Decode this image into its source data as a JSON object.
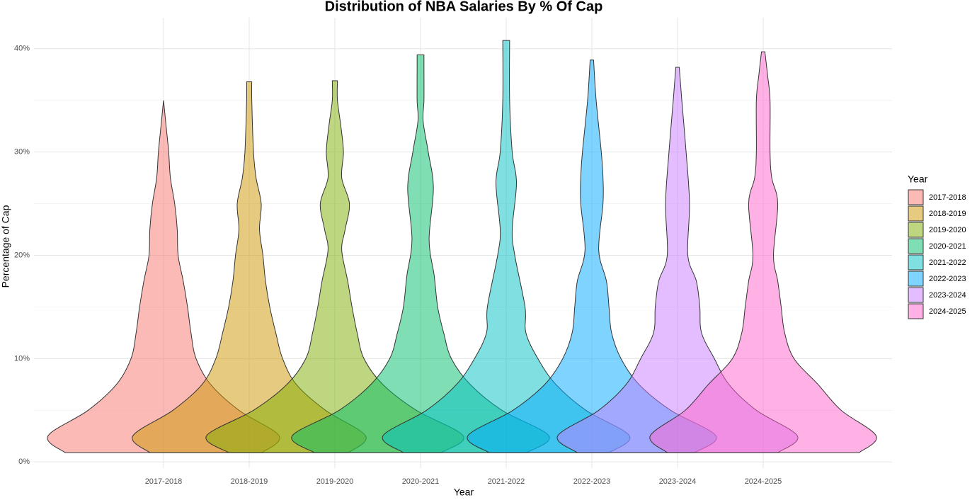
{
  "chart_data": {
    "type": "violin",
    "title": "Distribution of NBA Salaries By % Of Cap",
    "x_label": "Year",
    "y_label": "Percentage of Cap",
    "legend_title": "Year",
    "legend_position": "right",
    "grid": true,
    "categories": [
      "2017-2018",
      "2018-2019",
      "2019-2020",
      "2020-2021",
      "2021-2022",
      "2022-2023",
      "2023-2024",
      "2024-2025"
    ],
    "ylim": [
      -0.6,
      43
    ],
    "yticks": [
      {
        "value": 0,
        "label": "0%"
      },
      {
        "value": 10,
        "label": "10%"
      },
      {
        "value": 20,
        "label": "20%"
      },
      {
        "value": 30,
        "label": "30%"
      },
      {
        "value": 40,
        "label": "40%"
      }
    ],
    "yminor_ticks": [
      5,
      15,
      25,
      35
    ],
    "series": [
      {
        "name": "2017-2018",
        "color": "#F8766D",
        "y": [
          0.9,
          2.5,
          5,
          7.5,
          10,
          12.5,
          15,
          17.5,
          20,
          22.5,
          25,
          27.5,
          30,
          32.5,
          35
        ],
        "width": [
          1.15,
          1.35,
          0.88,
          0.55,
          0.38,
          0.32,
          0.28,
          0.23,
          0.17,
          0.16,
          0.13,
          0.08,
          0.06,
          0.03,
          0
        ]
      },
      {
        "name": "2018-2019",
        "color": "#CD9600",
        "y": [
          0.9,
          2.5,
          5,
          7.5,
          10,
          12.5,
          15,
          17.5,
          20,
          22.5,
          25,
          27.5,
          30,
          35,
          36.8
        ],
        "width": [
          1.16,
          1.36,
          0.89,
          0.55,
          0.39,
          0.31,
          0.24,
          0.19,
          0.16,
          0.12,
          0.14,
          0.08,
          0.05,
          0.03,
          0.03
        ]
      },
      {
        "name": "2019-2020",
        "color": "#7CAE00",
        "y": [
          0.9,
          2.5,
          5,
          7.5,
          10,
          12.5,
          15,
          17.5,
          20.5,
          22.5,
          25,
          27.5,
          30,
          32.5,
          35,
          36.9
        ],
        "width": [
          1.24,
          1.5,
          0.95,
          0.56,
          0.34,
          0.26,
          0.2,
          0.15,
          0.08,
          0.12,
          0.17,
          0.08,
          0.1,
          0.07,
          0.03,
          0.03
        ]
      },
      {
        "name": "2020-2021",
        "color": "#00BE67",
        "y": [
          0.9,
          2.5,
          5,
          7.5,
          10,
          12.5,
          15,
          18,
          21.5,
          26.5,
          30,
          33,
          35,
          38,
          39.4
        ],
        "width": [
          1.24,
          1.5,
          0.95,
          0.58,
          0.36,
          0.27,
          0.2,
          0.16,
          0.1,
          0.15,
          0.09,
          0.03,
          0.04,
          0.04,
          0.04
        ]
      },
      {
        "name": "2021-2022",
        "color": "#00BFC4",
        "y": [
          0.9,
          2.5,
          5,
          7.5,
          10,
          12.5,
          15,
          20,
          22.5,
          27,
          30,
          35,
          40.8
        ],
        "width": [
          1.2,
          1.44,
          0.93,
          0.58,
          0.37,
          0.23,
          0.22,
          0.1,
          0.07,
          0.12,
          0.07,
          0.04,
          0.04
        ]
      },
      {
        "name": "2022-2023",
        "color": "#00A9FF",
        "y": [
          0.9,
          2.5,
          5,
          7.5,
          10,
          12.5,
          15,
          17.5,
          20.5,
          25,
          27.5,
          30,
          35,
          38.9
        ],
        "width": [
          1.2,
          1.45,
          0.92,
          0.55,
          0.34,
          0.23,
          0.2,
          0.17,
          0.08,
          0.13,
          0.13,
          0.11,
          0.05,
          0.02
        ]
      },
      {
        "name": "2023-2024",
        "color": "#C77CFF",
        "y": [
          0.9,
          2.5,
          5,
          7.5,
          10,
          12.5,
          15,
          17.5,
          20,
          25,
          30,
          35,
          38.2
        ],
        "width": [
          1.17,
          1.4,
          0.92,
          0.6,
          0.43,
          0.28,
          0.26,
          0.22,
          0.12,
          0.14,
          0.1,
          0.05,
          0.02
        ]
      },
      {
        "name": "2024-2025",
        "color": "#FF61CC",
        "y": [
          0.9,
          2.5,
          5,
          7.5,
          10,
          12.5,
          15,
          17.5,
          20,
          25,
          27.5,
          30,
          35,
          37.5,
          39.7
        ],
        "width": [
          1.12,
          1.32,
          0.91,
          0.64,
          0.36,
          0.25,
          0.21,
          0.17,
          0.12,
          0.17,
          0.1,
          0.08,
          0.08,
          0.05,
          0.02
        ]
      }
    ]
  }
}
